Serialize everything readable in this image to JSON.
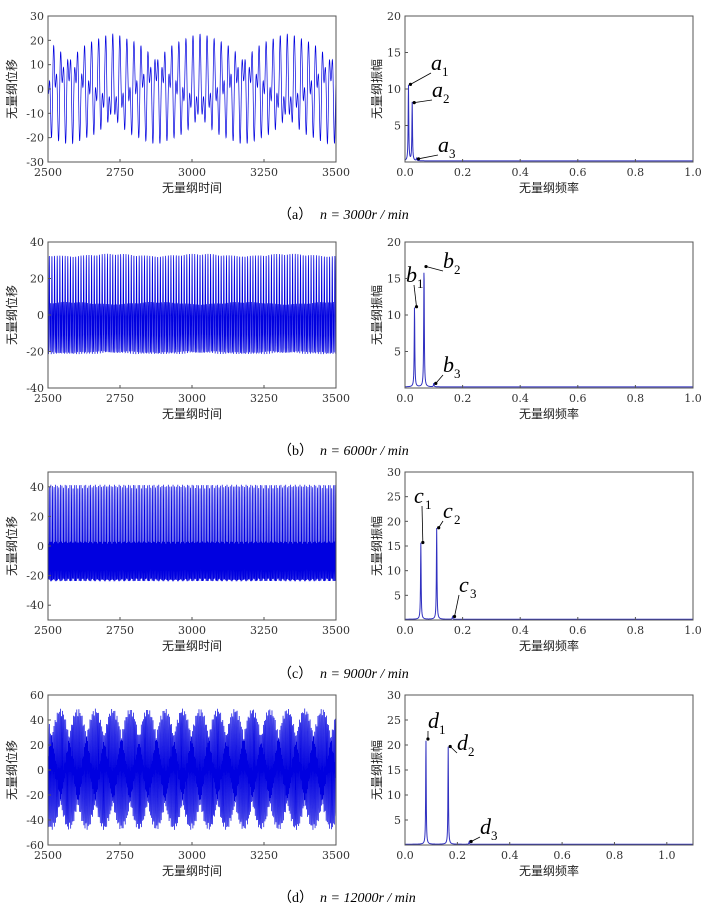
{
  "colors": {
    "signal": "#0000e0",
    "spectrum": "#3030c0",
    "axis": "#555555"
  },
  "chart_data": [
    {
      "type": "line",
      "panel": "a-time",
      "xlabel": "无量纲时间",
      "ylabel": "无量纲位移",
      "xlim": [
        2500,
        3500
      ],
      "ylim": [
        -30,
        30
      ],
      "xticks": [
        2500,
        2750,
        3000,
        3250,
        3500
      ],
      "yticks": [
        -30,
        -20,
        -10,
        0,
        10,
        20,
        30
      ]
    },
    {
      "type": "line",
      "panel": "a-spectrum",
      "xlabel": "无量纲频率",
      "ylabel": "无量纲振幅",
      "xlim": [
        0,
        1.0
      ],
      "ylim": [
        0,
        20
      ],
      "xticks": [
        "0.0",
        "0.2",
        "0.4",
        "0.6",
        "0.8",
        "1.0"
      ],
      "yticks": [
        5,
        10,
        15,
        20
      ],
      "peaks": [
        {
          "label": "a",
          "sub": "1",
          "x": 0.012,
          "y": 10.5
        },
        {
          "label": "a",
          "sub": "2",
          "x": 0.025,
          "y": 8
        },
        {
          "label": "a",
          "sub": "3",
          "x": 0.04,
          "y": 0.3
        }
      ]
    },
    {
      "type": "line",
      "panel": "b-time",
      "xlabel": "无量纲时间",
      "ylabel": "无量纲位移",
      "xlim": [
        2500,
        3500
      ],
      "ylim": [
        -40,
        40
      ],
      "xticks": [
        2500,
        2750,
        3000,
        3250,
        3500
      ],
      "yticks": [
        -40,
        -20,
        0,
        20,
        40
      ]
    },
    {
      "type": "line",
      "panel": "b-spectrum",
      "xlabel": "无量纲频率",
      "ylabel": "无量纲振幅",
      "xlim": [
        0,
        1.0
      ],
      "ylim": [
        0,
        20
      ],
      "xticks": [
        "0.0",
        "0.2",
        "0.4",
        "0.6",
        "0.8",
        "1.0"
      ],
      "yticks": [
        5,
        10,
        15,
        20
      ],
      "peaks": [
        {
          "label": "b",
          "sub": "1",
          "x": 0.033,
          "y": 11
        },
        {
          "label": "b",
          "sub": "2",
          "x": 0.066,
          "y": 16.5
        },
        {
          "label": "b",
          "sub": "3",
          "x": 0.1,
          "y": 0.5
        }
      ]
    },
    {
      "type": "line",
      "panel": "c-time",
      "xlabel": "无量纲时间",
      "ylabel": "无量纲位移",
      "xlim": [
        2500,
        3500
      ],
      "ylim": [
        -50,
        50
      ],
      "xticks": [
        2500,
        2750,
        3000,
        3250,
        3500
      ],
      "yticks": [
        -40,
        -20,
        0,
        20,
        40
      ]
    },
    {
      "type": "line",
      "panel": "c-spectrum",
      "xlabel": "无量纲频率",
      "ylabel": "无量纲振幅",
      "xlim": [
        0,
        1.0
      ],
      "ylim": [
        0,
        30
      ],
      "xticks": [
        "0.0",
        "0.2",
        "0.4",
        "0.6",
        "0.8",
        "1.0"
      ],
      "yticks": [
        5,
        10,
        15,
        20,
        25,
        30
      ],
      "peaks": [
        {
          "label": "c",
          "sub": "1",
          "x": 0.055,
          "y": 15.5
        },
        {
          "label": "c",
          "sub": "2",
          "x": 0.11,
          "y": 18.5
        },
        {
          "label": "c",
          "sub": "3",
          "x": 0.165,
          "y": 0.5
        }
      ]
    },
    {
      "type": "line",
      "panel": "d-time",
      "xlabel": "无量纲时间",
      "ylabel": "无量纲位移",
      "xlim": [
        2500,
        3500
      ],
      "ylim": [
        -60,
        60
      ],
      "xticks": [
        2500,
        2750,
        3000,
        3250,
        3500
      ],
      "yticks": [
        -60,
        -40,
        -20,
        0,
        20,
        40,
        60
      ]
    },
    {
      "type": "line",
      "panel": "d-spectrum",
      "xlabel": "无量纲频率",
      "ylabel": "无量纲振幅",
      "xlim": [
        0,
        1.1
      ],
      "ylim": [
        0,
        30
      ],
      "xticks": [
        "0.0",
        "0.2",
        "0.4",
        "0.6",
        "0.8",
        "1.0"
      ],
      "yticks": [
        5,
        10,
        15,
        20,
        25,
        30
      ],
      "peaks": [
        {
          "label": "d",
          "sub": "1",
          "x": 0.08,
          "y": 21
        },
        {
          "label": "d",
          "sub": "2",
          "x": 0.165,
          "y": 19.5
        },
        {
          "label": "d",
          "sub": "3",
          "x": 0.245,
          "y": 0.5
        }
      ]
    }
  ],
  "captions": [
    {
      "tag": "（a）",
      "formula": "n = 3000r / min"
    },
    {
      "tag": "（b）",
      "formula": "n = 6000r / min"
    },
    {
      "tag": "（c）",
      "formula": "n = 9000r / min"
    },
    {
      "tag": "（d）",
      "formula": "n = 12000r / min"
    }
  ]
}
